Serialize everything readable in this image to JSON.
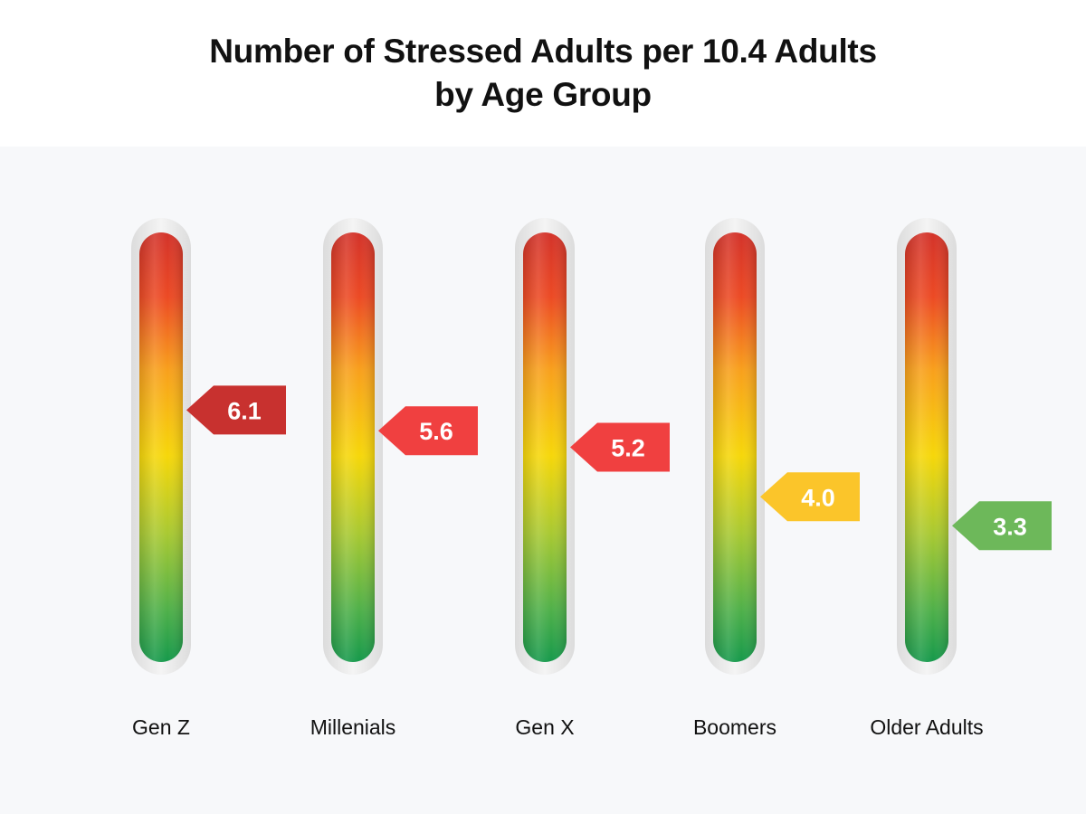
{
  "chart_data": {
    "type": "bar",
    "title": "Number of Stressed Adults per 10.4 Adults",
    "subtitle": "by Age Group",
    "categories": [
      "Gen Z",
      "Millenials",
      "Gen X",
      "Boomers",
      "Older Adults"
    ],
    "values": [
      6.1,
      5.6,
      5.2,
      4.0,
      3.3
    ],
    "value_labels": [
      "6.1",
      "5.6",
      "5.2",
      "4.0",
      "3.3"
    ],
    "ylim": [
      0,
      10.4
    ],
    "grid": false,
    "legend": "none",
    "gauge_gradient": [
      "#d3332a",
      "#f6d70a",
      "#1f9e4a"
    ],
    "tag_colors": [
      "#c8312f",
      "#f04040",
      "#f04040",
      "#fbc52a",
      "#6db85a"
    ]
  }
}
